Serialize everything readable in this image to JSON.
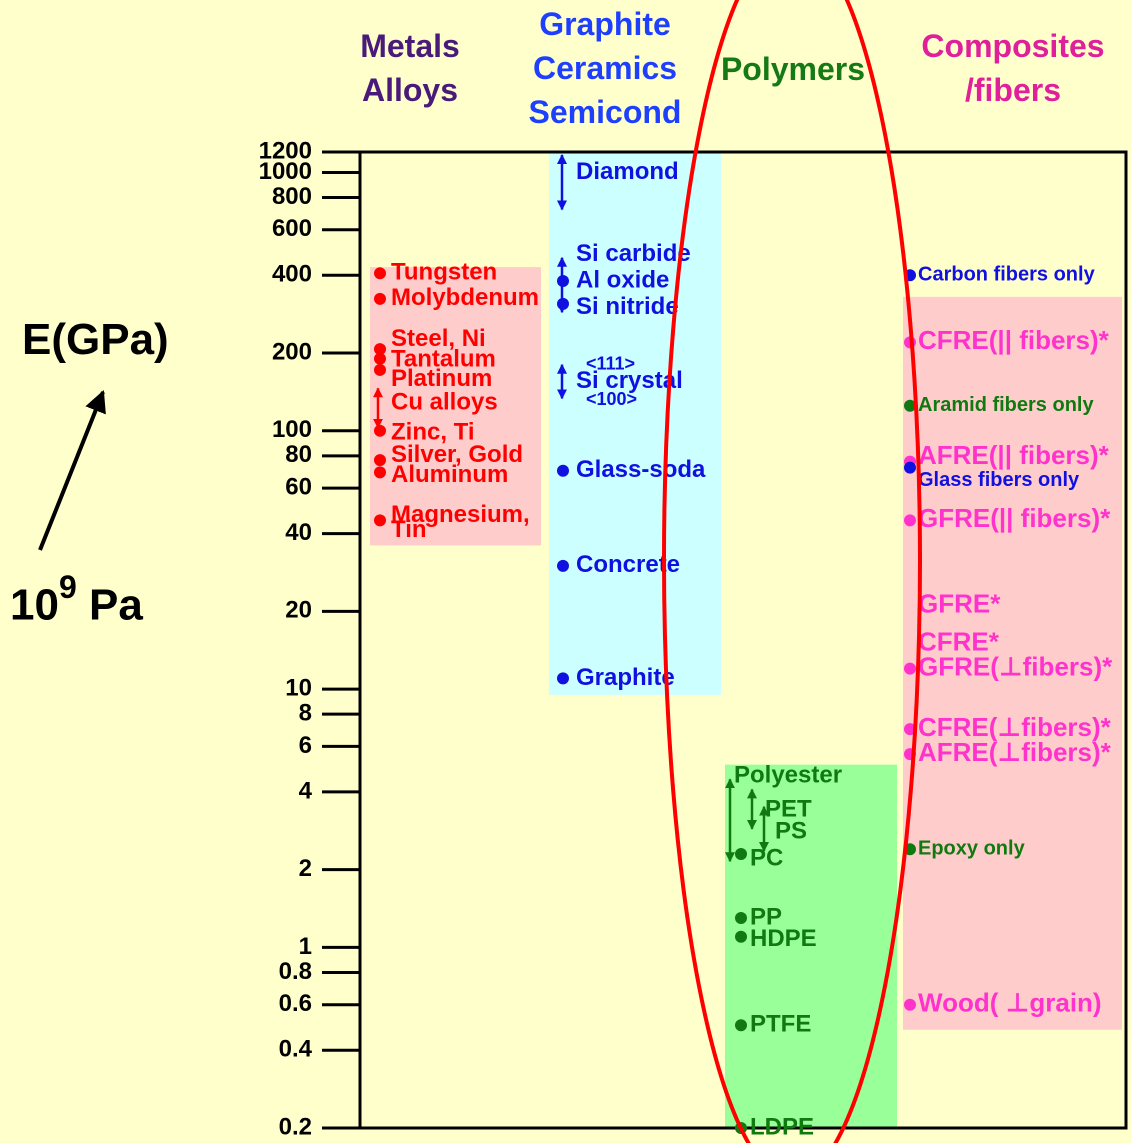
{
  "chart_data": {
    "type": "scatter",
    "ylabel": "E(GPa)",
    "yunit": {
      "base": "10",
      "exp": "9",
      "rest": "Pa"
    },
    "yscale": "log",
    "ylim": [
      0.2,
      1200
    ],
    "yticks": [
      {
        "v": 1200,
        "t": "1200"
      },
      {
        "v": 1000,
        "t": "1000"
      },
      {
        "v": 800,
        "t": "800"
      },
      {
        "v": 600,
        "t": "600"
      },
      {
        "v": 400,
        "t": "400"
      },
      {
        "v": 200,
        "t": "200"
      },
      {
        "v": 100,
        "t": "100"
      },
      {
        "v": 80,
        "t": "80"
      },
      {
        "v": 60,
        "t": "60"
      },
      {
        "v": 40,
        "t": "40"
      },
      {
        "v": 20,
        "t": "20"
      },
      {
        "v": 10,
        "t": "10"
      },
      {
        "v": 8,
        "t": "8"
      },
      {
        "v": 6,
        "t": "6"
      },
      {
        "v": 4,
        "t": "4"
      },
      {
        "v": 2,
        "t": "2"
      },
      {
        "v": 1,
        "t": "1"
      },
      {
        "v": 0.8,
        "t": "0.8"
      },
      {
        "v": 0.6,
        "t": "0.6"
      },
      {
        "v": 0.4,
        "t": "0.4"
      },
      {
        "v": 0.2,
        "t": "0.2"
      }
    ],
    "groups": [
      {
        "id": "metals",
        "title": [
          "Metals",
          "Alloys"
        ],
        "color": "#ff0000",
        "bg": "#ffcccc",
        "range": [
          36,
          430
        ]
      },
      {
        "id": "ceramics",
        "title": [
          "Graphite",
          "Ceramics",
          "Semicond"
        ],
        "color": "#1010e0",
        "bg": "#ccffff",
        "range": [
          9.5,
          1200
        ]
      },
      {
        "id": "polymers",
        "title": [
          "Polymers"
        ],
        "color": "#107a10",
        "bg": "#99ff99",
        "range": [
          0.2,
          5.1
        ]
      },
      {
        "id": "composites",
        "title": [
          "Composites",
          "/fibers"
        ],
        "color": "#ff33cc",
        "bg": "#ffcccc",
        "range": [
          0.48,
          330
        ]
      }
    ],
    "series": [
      {
        "name": "Metals Alloys",
        "group": "metals",
        "points": [
          {
            "label": "Tungsten",
            "v": 407,
            "dot": true
          },
          {
            "label": "Molybdenum",
            "v": 324,
            "dot": true
          },
          {
            "label": "Steel, Ni",
            "v": 207,
            "dot": true,
            "labelV": 225
          },
          {
            "label": "Tantalum",
            "v": 190,
            "dot": true,
            "labelV": 188
          },
          {
            "label": "Platinum",
            "v": 172,
            "dot": true,
            "labelV": 158
          },
          {
            "label": "Cu alloys",
            "range": [
              100,
              150
            ],
            "labelV": 128
          },
          {
            "label": "Zinc, Ti",
            "v": 100,
            "dot": true,
            "labelV": 98
          },
          {
            "label": "Silver, Gold",
            "v": 77,
            "dot": true,
            "labelV": 80
          },
          {
            "label": "Aluminum",
            "v": 69,
            "dot": true,
            "labelV": 67
          },
          {
            "label": "Magnesium,",
            "v": 45,
            "dot": true,
            "labelV": 47
          },
          {
            "label": "Tin",
            "labelV": 41
          }
        ]
      },
      {
        "name": "Graphite Ceramics Semicond",
        "group": "ceramics",
        "points": [
          {
            "label": "Diamond",
            "range": [
              700,
              1200
            ],
            "labelV": 1000
          },
          {
            "label": "Si carbide",
            "range": [
              280,
              480
            ],
            "labelV": 480
          },
          {
            "label": "Al oxide",
            "v": 380,
            "dot": true,
            "labelV": 380
          },
          {
            "label": "Si nitride",
            "v": 310,
            "dot": true,
            "labelV": 300
          },
          {
            "label": "<111>",
            "range": [
              130,
              185
            ],
            "labelV": 180,
            "small": true
          },
          {
            "label": "Si crystal",
            "labelV": 155
          },
          {
            "label": "<100>",
            "labelV": 131,
            "small": true
          },
          {
            "label": "Glass-soda",
            "v": 70,
            "dot": true
          },
          {
            "label": "Concrete",
            "v": 30,
            "dot": true
          },
          {
            "label": "Graphite",
            "v": 11,
            "dot": true
          }
        ]
      },
      {
        "name": "Polymers",
        "group": "polymers",
        "points": [
          {
            "label": "Polyester",
            "range": [
              2.1,
              4.6
            ],
            "labelV": 4.6
          },
          {
            "label": "PET",
            "range": [
              2.8,
              4.2
            ],
            "labelV": 3.4
          },
          {
            "label": "PS",
            "range": [
              2.3,
              3.6
            ],
            "labelV": 2.8
          },
          {
            "label": "PC",
            "v": 2.3,
            "dot": true,
            "labelV": 2.2
          },
          {
            "label": "PP",
            "v": 1.3,
            "dot": true,
            "labelV": 1.3
          },
          {
            "label": "HDPE",
            "v": 1.1,
            "dot": true,
            "labelV": 1.07
          },
          {
            "label": "PTFE",
            "v": 0.5,
            "dot": true
          },
          {
            "label": "LDPE",
            "v": 0.2,
            "dot": true
          }
        ]
      },
      {
        "name": "Composites /fibers",
        "group": "composites",
        "points": [
          {
            "label": "Carbon fibers only",
            "v": 400,
            "dot": true,
            "color": "#1010e0",
            "small": true
          },
          {
            "label": "CFRE(|| fibers)*",
            "v": 220,
            "dot": true
          },
          {
            "label": "Aramid fibers only",
            "v": 125,
            "dot": true,
            "color": "#107a10",
            "small": true
          },
          {
            "label": "AFRE(|| fibers)*",
            "v": 76,
            "dot": true,
            "labelV": 79
          },
          {
            "label": "Glass fibers only",
            "v": 72,
            "dot": true,
            "color": "#1010e0",
            "small": true,
            "labelV": 64
          },
          {
            "label": "GFRE(|| fibers)*",
            "v": 45,
            "dot": true
          },
          {
            "label": "GFRE*",
            "labelV": 21
          },
          {
            "label": "CFRE*",
            "labelV": 15
          },
          {
            "label": "GFRE(⊥fibers)*",
            "v": 12,
            "dot": true
          },
          {
            "label": "CFRE(⊥fibers)*",
            "v": 7,
            "dot": true
          },
          {
            "label": "AFRE(⊥fibers)*",
            "v": 5.6,
            "dot": true
          },
          {
            "label": "Epoxy only",
            "v": 2.4,
            "dot": true,
            "color": "#107a10",
            "small": true
          },
          {
            "label": "Wood( ⊥grain)",
            "v": 0.6,
            "dot": true
          }
        ]
      }
    ],
    "annotations": [
      "red ellipse highlighting Polymers column",
      "arrow from 10^9 Pa to E(GPa)"
    ]
  }
}
